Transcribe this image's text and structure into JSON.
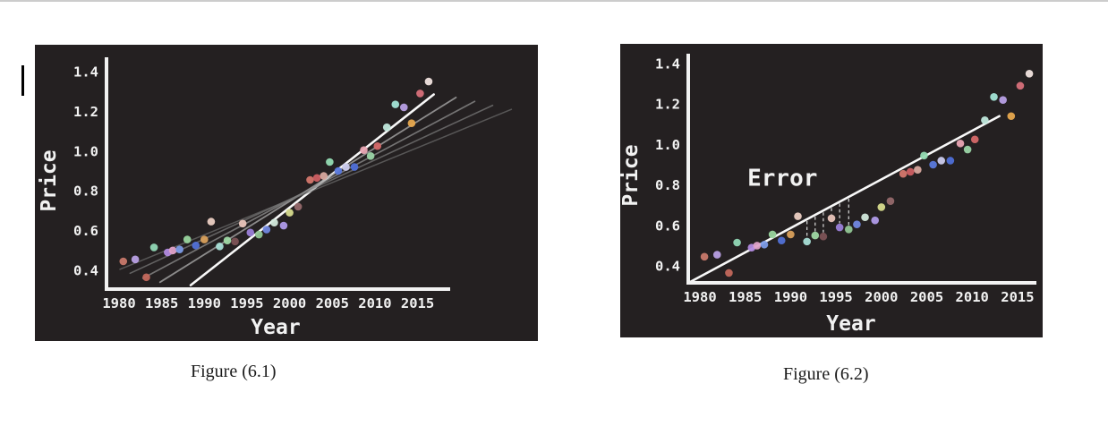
{
  "page": {
    "background_color": "#ffffff",
    "top_border_color": "#cccccc",
    "panel_background": "#242021",
    "axis_color": "#f2f2f2",
    "text_cursor": {
      "visible": true
    }
  },
  "captions": [
    {
      "text": "Figure (6.1)"
    },
    {
      "text": "Figure (6.2)"
    }
  ],
  "chart_data": [
    {
      "type": "scatter",
      "figure_label": "Figure (6.1)",
      "xlabel": "Year",
      "ylabel": "Price",
      "x_tick_labels": [
        "1980",
        "1985",
        "1990",
        "1995",
        "2000",
        "2005",
        "2010",
        "2015"
      ],
      "y_tick_labels": [
        "0.4",
        "0.6",
        "0.8",
        "1.0",
        "1.2",
        "1.4"
      ],
      "xlim": [
        1977.5,
        2029
      ],
      "ylim": [
        0.29,
        1.46
      ],
      "grid": false,
      "legend": "none",
      "points": [
        [
          1980.5,
          0.445,
          "#c8796c"
        ],
        [
          1981.9,
          0.455,
          "#b9a0e4"
        ],
        [
          1983.2,
          0.365,
          "#c3685c"
        ],
        [
          1984.1,
          0.515,
          "#92d8b6"
        ],
        [
          1985.7,
          0.49,
          "#b28ae0"
        ],
        [
          1986.3,
          0.5,
          "#dfa2c8"
        ],
        [
          1987.1,
          0.505,
          "#7c9be6"
        ],
        [
          1988.0,
          0.555,
          "#99d59e"
        ],
        [
          1989.0,
          0.525,
          "#5271d6"
        ],
        [
          1990.0,
          0.555,
          "#d9a05c"
        ],
        [
          1990.8,
          0.645,
          "#eccfc3"
        ],
        [
          1991.8,
          0.52,
          "#a9dfd7"
        ],
        [
          1992.7,
          0.55,
          "#9fd8a4"
        ],
        [
          1993.6,
          0.545,
          "#7d5356"
        ],
        [
          1994.5,
          0.635,
          "#e9c4ba"
        ],
        [
          1995.4,
          0.59,
          "#9b80d8"
        ],
        [
          1996.4,
          0.58,
          "#93c796"
        ],
        [
          1997.3,
          0.605,
          "#7288e2"
        ],
        [
          1998.2,
          0.64,
          "#d3e9dc"
        ],
        [
          1999.3,
          0.625,
          "#b09be9"
        ],
        [
          2000.0,
          0.69,
          "#d8dc8e"
        ],
        [
          2001.0,
          0.72,
          "#96696b"
        ],
        [
          2002.4,
          0.855,
          "#d4776d"
        ],
        [
          2003.2,
          0.865,
          "#cd5f63"
        ],
        [
          2004.0,
          0.875,
          "#d8a89e"
        ],
        [
          2004.7,
          0.945,
          "#95dcb3"
        ],
        [
          2005.7,
          0.9,
          "#5b7ade"
        ],
        [
          2006.6,
          0.92,
          "#ccccee"
        ],
        [
          2007.6,
          0.92,
          "#4f6fd8"
        ],
        [
          2008.7,
          1.005,
          "#e9a5b3"
        ],
        [
          2009.5,
          0.975,
          "#9bd5a7"
        ],
        [
          2010.3,
          1.025,
          "#d56969"
        ],
        [
          2011.4,
          1.12,
          "#c0e8dc"
        ],
        [
          2012.4,
          1.235,
          "#a4e5d7"
        ],
        [
          2013.4,
          1.22,
          "#b8a0e5"
        ],
        [
          2014.3,
          1.14,
          "#e7a84e"
        ],
        [
          2015.3,
          1.29,
          "#d7707a"
        ],
        [
          2016.3,
          1.35,
          "#f1e3df"
        ]
      ],
      "fit_lines": [
        {
          "x1": 1988.4,
          "y1": 0.325,
          "x2": 2016.9,
          "y2": 1.285,
          "color": "#f8f8f8",
          "width": 2.6,
          "opacity": 1
        },
        {
          "x1": 1984.8,
          "y1": 0.34,
          "x2": 2019.5,
          "y2": 1.27,
          "color": "#a6a6a6",
          "width": 1.8,
          "opacity": 0.8
        },
        {
          "x1": 1982.8,
          "y1": 0.36,
          "x2": 2021.7,
          "y2": 1.25,
          "color": "#8f8f8f",
          "width": 1.7,
          "opacity": 0.75
        },
        {
          "x1": 1981.3,
          "y1": 0.385,
          "x2": 2023.8,
          "y2": 1.23,
          "color": "#7f7f7f",
          "width": 1.6,
          "opacity": 0.7
        },
        {
          "x1": 1980.1,
          "y1": 0.405,
          "x2": 2026.0,
          "y2": 1.21,
          "color": "#737373",
          "width": 1.5,
          "opacity": 0.65
        }
      ]
    },
    {
      "type": "scatter",
      "figure_label": "Figure (6.2)",
      "xlabel": "Year",
      "ylabel": "Price",
      "x_tick_labels": [
        "1980",
        "1985",
        "1990",
        "1995",
        "2000",
        "2005",
        "2010",
        "2015"
      ],
      "y_tick_labels": [
        "0.4",
        "0.6",
        "0.8",
        "1.0",
        "1.2",
        "1.4"
      ],
      "xlim": [
        1977.5,
        2019
      ],
      "ylim": [
        0.29,
        1.46
      ],
      "grid": false,
      "legend": "none",
      "points": [
        [
          1980.5,
          0.445,
          "#c8796c"
        ],
        [
          1981.9,
          0.455,
          "#b9a0e4"
        ],
        [
          1983.2,
          0.365,
          "#c3685c"
        ],
        [
          1984.1,
          0.515,
          "#92d8b6"
        ],
        [
          1985.7,
          0.49,
          "#b28ae0"
        ],
        [
          1986.3,
          0.5,
          "#dfa2c8"
        ],
        [
          1987.1,
          0.505,
          "#7c9be6"
        ],
        [
          1988.0,
          0.555,
          "#99d59e"
        ],
        [
          1989.0,
          0.525,
          "#5271d6"
        ],
        [
          1990.0,
          0.555,
          "#d9a05c"
        ],
        [
          1990.8,
          0.645,
          "#eccfc3"
        ],
        [
          1991.8,
          0.52,
          "#a9dfd7"
        ],
        [
          1992.7,
          0.55,
          "#9fd8a4"
        ],
        [
          1993.6,
          0.545,
          "#7d5356"
        ],
        [
          1994.5,
          0.635,
          "#e9c4ba"
        ],
        [
          1995.4,
          0.59,
          "#9b80d8"
        ],
        [
          1996.4,
          0.58,
          "#93c796"
        ],
        [
          1997.3,
          0.605,
          "#7288e2"
        ],
        [
          1998.2,
          0.64,
          "#d3e9dc"
        ],
        [
          1999.3,
          0.625,
          "#b09be9"
        ],
        [
          2000.0,
          0.69,
          "#d8dc8e"
        ],
        [
          2001.0,
          0.72,
          "#96696b"
        ],
        [
          2002.4,
          0.855,
          "#d4776d"
        ],
        [
          2003.2,
          0.865,
          "#cd5f63"
        ],
        [
          2004.0,
          0.875,
          "#d8a89e"
        ],
        [
          2004.7,
          0.945,
          "#95dcb3"
        ],
        [
          2005.7,
          0.9,
          "#5b7ade"
        ],
        [
          2006.6,
          0.92,
          "#ccccee"
        ],
        [
          2007.6,
          0.92,
          "#4f6fd8"
        ],
        [
          2008.7,
          1.005,
          "#e9a5b3"
        ],
        [
          2009.5,
          0.975,
          "#9bd5a7"
        ],
        [
          2010.3,
          1.025,
          "#d56969"
        ],
        [
          2011.4,
          1.12,
          "#c0e8dc"
        ],
        [
          2012.4,
          1.235,
          "#a4e5d7"
        ],
        [
          2013.4,
          1.22,
          "#b8a0e5"
        ],
        [
          2014.3,
          1.14,
          "#e7a84e"
        ],
        [
          2015.3,
          1.29,
          "#d7707a"
        ],
        [
          2016.3,
          1.35,
          "#f1e3df"
        ]
      ],
      "fit_lines": [
        {
          "x1": 1978.7,
          "y1": 0.315,
          "x2": 2013.0,
          "y2": 1.14,
          "color": "#f8f8f8",
          "width": 2.6,
          "opacity": 1
        }
      ],
      "residual_years": [
        1991.8,
        1992.7,
        1993.6,
        1994.5,
        1995.4,
        1996.4
      ],
      "annotations": [
        {
          "text": "Error",
          "x": 1989.1,
          "y": 0.795
        }
      ]
    }
  ]
}
